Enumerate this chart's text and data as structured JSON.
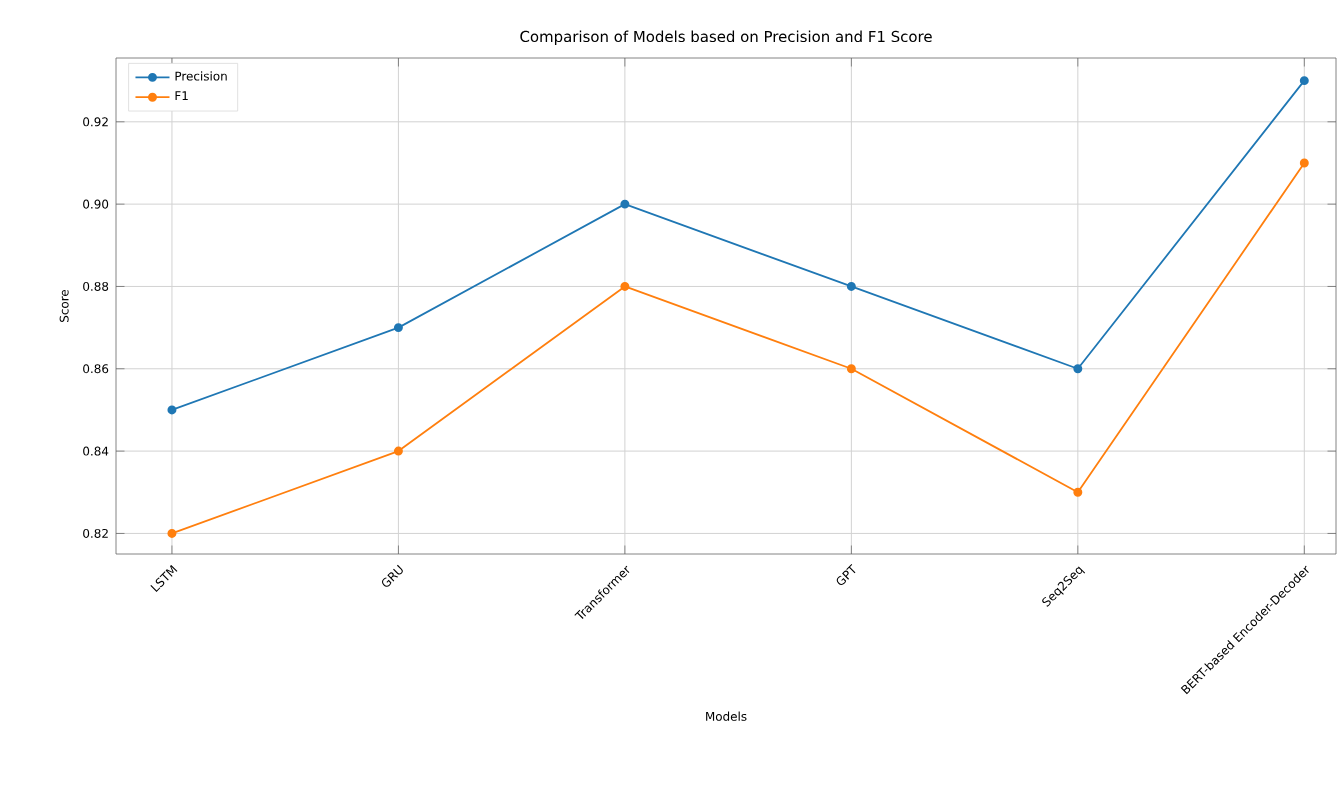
{
  "chart_data": {
    "type": "line",
    "title": "Comparison of Models based on Precision and F1 Score",
    "xlabel": "Models",
    "ylabel": "Score",
    "categories": [
      "LSTM",
      "GRU",
      "Transformer",
      "GPT",
      "Seq2Seq",
      "BERT-based Encoder-Decoder"
    ],
    "series": [
      {
        "name": "Precision",
        "color": "#1f77b4",
        "values": [
          0.85,
          0.87,
          0.9,
          0.88,
          0.86,
          0.93
        ]
      },
      {
        "name": "F1",
        "color": "#ff7f0e",
        "values": [
          0.82,
          0.84,
          0.88,
          0.86,
          0.83,
          0.91
        ]
      }
    ],
    "ylim": [
      0.815,
      0.9355
    ],
    "yticks": [
      0.82,
      0.84,
      0.86,
      0.88,
      {
        "value": 0.9,
        "label": "0.90"
      },
      0.92
    ],
    "grid": true,
    "legend": "top left",
    "marker": "circle",
    "line_style": "solid"
  }
}
